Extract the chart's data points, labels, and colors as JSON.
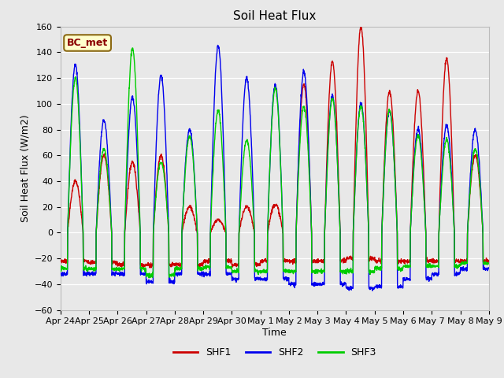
{
  "title": "Soil Heat Flux",
  "ylabel": "Soil Heat Flux (W/m2)",
  "xlabel": "Time",
  "legend_label": "BC_met",
  "series_labels": [
    "SHF1",
    "SHF2",
    "SHF3"
  ],
  "series_colors": [
    "#cc0000",
    "#0000ee",
    "#00cc00"
  ],
  "ylim": [
    -60,
    160
  ],
  "yticks": [
    -60,
    -40,
    -20,
    0,
    20,
    40,
    60,
    80,
    100,
    120,
    140,
    160
  ],
  "xtick_labels": [
    "Apr 24",
    "Apr 25",
    "Apr 26",
    "Apr 27",
    "Apr 28",
    "Apr 29",
    "Apr 30",
    "May 1",
    "May 2",
    "May 3",
    "May 4",
    "May 5",
    "May 6",
    "May 7",
    "May 8",
    "May 9"
  ],
  "num_days": 15,
  "points_per_day": 144,
  "fig_bg": "#e8e8e8",
  "plot_bg": "#e8e8e8",
  "grid_color": "#ffffff",
  "line_width": 1.0,
  "title_fontsize": 11,
  "axis_label_fontsize": 9,
  "tick_fontsize": 8,
  "legend_fontsize": 9,
  "shf1_peaks": [
    40,
    60,
    55,
    60,
    20,
    10,
    20,
    22,
    115,
    133,
    160,
    110,
    110,
    135,
    60
  ],
  "shf2_peaks": [
    130,
    87,
    105,
    122,
    80,
    145,
    120,
    115,
    125,
    106,
    100,
    95,
    80,
    83,
    80
  ],
  "shf3_peaks": [
    120,
    65,
    143,
    55,
    75,
    95,
    72,
    112,
    98,
    104,
    98,
    95,
    75,
    72,
    65
  ],
  "shf1_night": [
    -22,
    -23,
    -25,
    -25,
    -25,
    -22,
    -25,
    -22,
    -22,
    -22,
    -20,
    -22,
    -22,
    -22,
    -22
  ],
  "shf2_night": [
    -32,
    -32,
    -32,
    -38,
    -32,
    -32,
    -36,
    -36,
    -40,
    -40,
    -43,
    -42,
    -36,
    -32,
    -28
  ],
  "shf3_night": [
    -28,
    -28,
    -28,
    -33,
    -28,
    -27,
    -30,
    -30,
    -30,
    -30,
    -30,
    -28,
    -26,
    -26,
    -24
  ]
}
